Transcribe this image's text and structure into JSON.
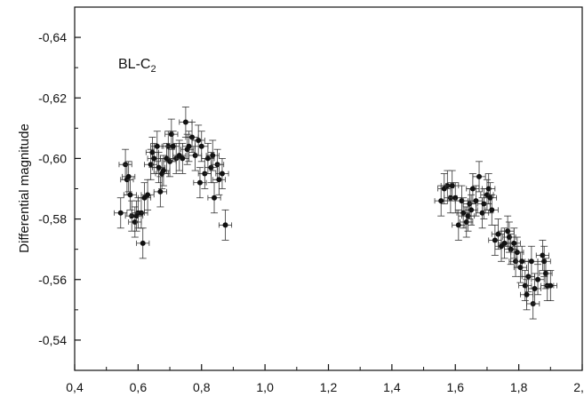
{
  "chart_data": {
    "type": "scatter",
    "title": "",
    "xlabel": "",
    "ylabel": "Differential magnitude",
    "annotation": {
      "base": "BL-C",
      "subscript": "2"
    },
    "xlim": [
      0.4,
      2.0
    ],
    "ylim": [
      -0.53,
      -0.65
    ],
    "y_reversed": true,
    "grid": false,
    "x_ticks": [
      0.4,
      0.6,
      0.8,
      1.0,
      1.2,
      1.4,
      1.6,
      1.8,
      2.0
    ],
    "x_tick_labels": [
      "0,4",
      "0,6",
      "0,8",
      "1,0",
      "1,2",
      "1,4",
      "1,6",
      "1,8",
      "2,0"
    ],
    "y_ticks": [
      -0.64,
      -0.62,
      -0.6,
      -0.58,
      -0.56,
      -0.54
    ],
    "y_tick_labels": [
      "-0,64",
      "-0,62",
      "-0,60",
      "-0,58",
      "-0,56",
      "-0,54"
    ],
    "error_bar": {
      "x": 0.02,
      "y": 0.005
    },
    "points": [
      {
        "x": 0.545,
        "y": -0.582
      },
      {
        "x": 0.56,
        "y": -0.598
      },
      {
        "x": 0.565,
        "y": -0.593
      },
      {
        "x": 0.57,
        "y": -0.594
      },
      {
        "x": 0.575,
        "y": -0.588
      },
      {
        "x": 0.58,
        "y": -0.581
      },
      {
        "x": 0.59,
        "y": -0.579
      },
      {
        "x": 0.595,
        "y": -0.581
      },
      {
        "x": 0.6,
        "y": -0.582
      },
      {
        "x": 0.61,
        "y": -0.582
      },
      {
        "x": 0.615,
        "y": -0.572
      },
      {
        "x": 0.62,
        "y": -0.587
      },
      {
        "x": 0.63,
        "y": -0.588
      },
      {
        "x": 0.64,
        "y": -0.598
      },
      {
        "x": 0.645,
        "y": -0.602
      },
      {
        "x": 0.65,
        "y": -0.6
      },
      {
        "x": 0.66,
        "y": -0.604
      },
      {
        "x": 0.665,
        "y": -0.597
      },
      {
        "x": 0.67,
        "y": -0.589
      },
      {
        "x": 0.675,
        "y": -0.595
      },
      {
        "x": 0.68,
        "y": -0.596
      },
      {
        "x": 0.69,
        "y": -0.6
      },
      {
        "x": 0.695,
        "y": -0.604
      },
      {
        "x": 0.7,
        "y": -0.599
      },
      {
        "x": 0.705,
        "y": -0.608
      },
      {
        "x": 0.71,
        "y": -0.604
      },
      {
        "x": 0.72,
        "y": -0.6
      },
      {
        "x": 0.73,
        "y": -0.601
      },
      {
        "x": 0.74,
        "y": -0.6
      },
      {
        "x": 0.75,
        "y": -0.612
      },
      {
        "x": 0.755,
        "y": -0.603
      },
      {
        "x": 0.76,
        "y": -0.604
      },
      {
        "x": 0.77,
        "y": -0.607
      },
      {
        "x": 0.78,
        "y": -0.601
      },
      {
        "x": 0.79,
        "y": -0.606
      },
      {
        "x": 0.795,
        "y": -0.592
      },
      {
        "x": 0.8,
        "y": -0.604
      },
      {
        "x": 0.81,
        "y": -0.595
      },
      {
        "x": 0.82,
        "y": -0.6
      },
      {
        "x": 0.83,
        "y": -0.597
      },
      {
        "x": 0.835,
        "y": -0.601
      },
      {
        "x": 0.84,
        "y": -0.587
      },
      {
        "x": 0.85,
        "y": -0.598
      },
      {
        "x": 0.855,
        "y": -0.593
      },
      {
        "x": 0.865,
        "y": -0.595
      },
      {
        "x": 0.875,
        "y": -0.578
      },
      {
        "x": 1.555,
        "y": -0.586
      },
      {
        "x": 1.565,
        "y": -0.59
      },
      {
        "x": 1.575,
        "y": -0.591
      },
      {
        "x": 1.585,
        "y": -0.587
      },
      {
        "x": 1.59,
        "y": -0.591
      },
      {
        "x": 1.6,
        "y": -0.587
      },
      {
        "x": 1.61,
        "y": -0.578
      },
      {
        "x": 1.62,
        "y": -0.586
      },
      {
        "x": 1.625,
        "y": -0.582
      },
      {
        "x": 1.635,
        "y": -0.579
      },
      {
        "x": 1.64,
        "y": -0.581
      },
      {
        "x": 1.645,
        "y": -0.585
      },
      {
        "x": 1.65,
        "y": -0.583
      },
      {
        "x": 1.655,
        "y": -0.59
      },
      {
        "x": 1.665,
        "y": -0.586
      },
      {
        "x": 1.675,
        "y": -0.594
      },
      {
        "x": 1.685,
        "y": -0.582
      },
      {
        "x": 1.69,
        "y": -0.585
      },
      {
        "x": 1.7,
        "y": -0.588
      },
      {
        "x": 1.705,
        "y": -0.59
      },
      {
        "x": 1.71,
        "y": -0.587
      },
      {
        "x": 1.715,
        "y": -0.583
      },
      {
        "x": 1.725,
        "y": -0.573
      },
      {
        "x": 1.735,
        "y": -0.575
      },
      {
        "x": 1.745,
        "y": -0.571
      },
      {
        "x": 1.755,
        "y": -0.572
      },
      {
        "x": 1.765,
        "y": -0.576
      },
      {
        "x": 1.77,
        "y": -0.574
      },
      {
        "x": 1.775,
        "y": -0.57
      },
      {
        "x": 1.785,
        "y": -0.572
      },
      {
        "x": 1.79,
        "y": -0.566
      },
      {
        "x": 1.795,
        "y": -0.569
      },
      {
        "x": 1.805,
        "y": -0.564
      },
      {
        "x": 1.81,
        "y": -0.566
      },
      {
        "x": 1.82,
        "y": -0.558
      },
      {
        "x": 1.825,
        "y": -0.555
      },
      {
        "x": 1.83,
        "y": -0.561
      },
      {
        "x": 1.84,
        "y": -0.566
      },
      {
        "x": 1.845,
        "y": -0.552
      },
      {
        "x": 1.85,
        "y": -0.557
      },
      {
        "x": 1.86,
        "y": -0.56
      },
      {
        "x": 1.875,
        "y": -0.568
      },
      {
        "x": 1.88,
        "y": -0.566
      },
      {
        "x": 1.885,
        "y": -0.562
      },
      {
        "x": 1.89,
        "y": -0.558
      },
      {
        "x": 1.9,
        "y": -0.558
      }
    ]
  }
}
